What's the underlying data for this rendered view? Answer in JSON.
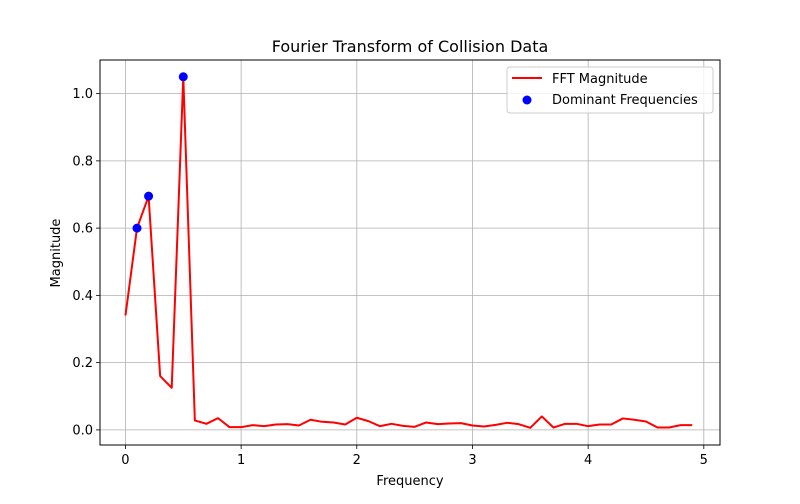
{
  "chart_data": {
    "type": "line",
    "title": "Fourier Transform of Collision Data",
    "xlabel": "Frequency",
    "ylabel": "Magnitude",
    "xlim": [
      -0.22,
      5.14
    ],
    "ylim": [
      -0.045,
      1.1
    ],
    "xticks": [
      0,
      1,
      2,
      3,
      4,
      5
    ],
    "xtick_labels": [
      "0",
      "1",
      "2",
      "3",
      "4",
      "5"
    ],
    "yticks": [
      0.0,
      0.2,
      0.4,
      0.6,
      0.8,
      1.0
    ],
    "ytick_labels": [
      "0.0",
      "0.2",
      "0.4",
      "0.6",
      "0.8",
      "1.0"
    ],
    "grid": true,
    "legend_position": "top-right",
    "series": [
      {
        "name": "FFT Magnitude",
        "kind": "line",
        "color": "#ff0000",
        "x": [
          0.0,
          0.1,
          0.2,
          0.3,
          0.4,
          0.5,
          0.6,
          0.7,
          0.8,
          0.9,
          1.0,
          1.1,
          1.2,
          1.3,
          1.4,
          1.5,
          1.6,
          1.7,
          1.8,
          1.9,
          2.0,
          2.1,
          2.2,
          2.3,
          2.4,
          2.5,
          2.6,
          2.7,
          2.8,
          2.9,
          3.0,
          3.1,
          3.2,
          3.3,
          3.4,
          3.5,
          3.6,
          3.7,
          3.8,
          3.9,
          4.0,
          4.1,
          4.2,
          4.3,
          4.4,
          4.5,
          4.6,
          4.7,
          4.8,
          4.9
        ],
        "y": [
          0.34,
          0.6,
          0.695,
          0.16,
          0.125,
          1.05,
          0.028,
          0.018,
          0.035,
          0.008,
          0.008,
          0.014,
          0.011,
          0.016,
          0.017,
          0.013,
          0.03,
          0.024,
          0.022,
          0.016,
          0.036,
          0.026,
          0.011,
          0.018,
          0.012,
          0.009,
          0.022,
          0.017,
          0.019,
          0.02,
          0.013,
          0.01,
          0.015,
          0.021,
          0.017,
          0.006,
          0.04,
          0.007,
          0.018,
          0.018,
          0.011,
          0.016,
          0.016,
          0.034,
          0.03,
          0.025,
          0.007,
          0.007,
          0.014,
          0.014
        ]
      },
      {
        "name": "Dominant Frequencies",
        "kind": "scatter",
        "color": "#0000ff",
        "x": [
          0.1,
          0.2,
          0.5
        ],
        "y": [
          0.6,
          0.695,
          1.05
        ]
      }
    ]
  }
}
